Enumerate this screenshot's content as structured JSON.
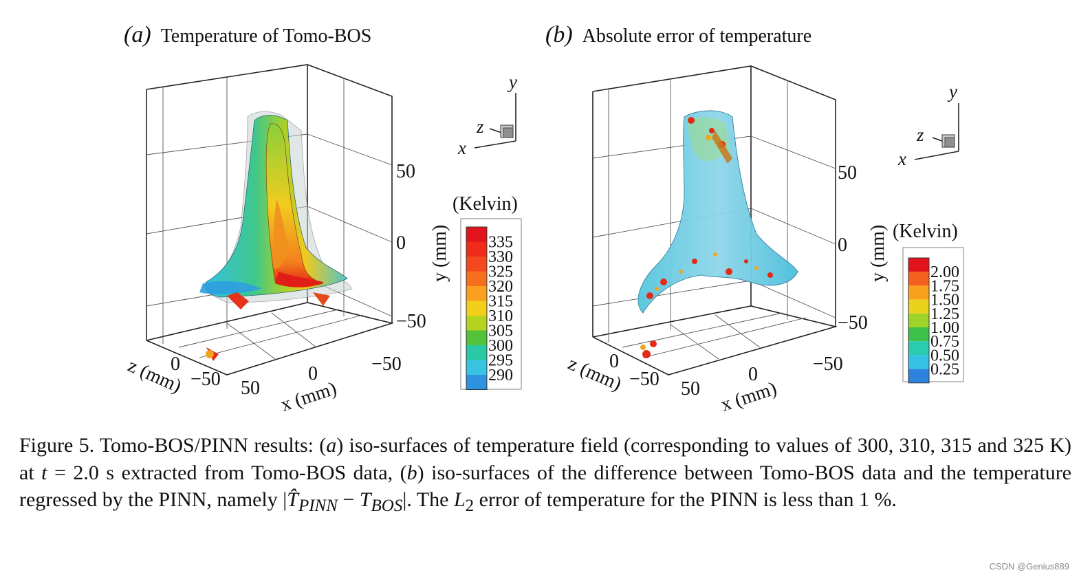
{
  "panel_a": {
    "label": "(a)",
    "title": "Temperature of Tomo-BOS",
    "y_ticks": [
      "50",
      "0",
      "−50"
    ],
    "x_ticks": [
      "−50",
      "0",
      "50"
    ],
    "z_ticks": [
      "0",
      "−50"
    ],
    "x_label": "x (mm)",
    "y_label": "y (mm)",
    "z_label": "z (mm)",
    "triad": {
      "x": "x",
      "y": "y",
      "z": "z"
    },
    "colorbar": {
      "title": "(Kelvin)",
      "labels": [
        "335",
        "330",
        "325",
        "320",
        "315",
        "310",
        "305",
        "300",
        "295",
        "290"
      ],
      "colors": [
        "#e0141a",
        "#ef2b1a",
        "#f4481f",
        "#f56f1c",
        "#f9a01f",
        "#f3cf1c",
        "#b4d31e",
        "#52c23a",
        "#29c8a6",
        "#37c4e3",
        "#2d92df"
      ]
    }
  },
  "panel_b": {
    "label": "(b)",
    "title": "Absolute error of temperature",
    "y_ticks": [
      "50",
      "0",
      "−50"
    ],
    "x_ticks": [
      "−50",
      "0",
      "50"
    ],
    "z_ticks": [
      "0",
      "−50"
    ],
    "x_label": "x (mm)",
    "y_label": "y (mm)",
    "z_label": "z (mm)",
    "triad": {
      "x": "x",
      "y": "y",
      "z": "z"
    },
    "colorbar": {
      "title": "(Kelvin)",
      "labels": [
        "2.00",
        "1.75",
        "1.50",
        "1.25",
        "1.00",
        "0.75",
        "0.50",
        "0.25"
      ],
      "colors": [
        "#e0141a",
        "#f4601e",
        "#f9a01f",
        "#e9d31c",
        "#9ed428",
        "#3cc24a",
        "#2bcbb0",
        "#36c2e4",
        "#2d82df"
      ]
    }
  },
  "caption": {
    "p1": "Figure 5. Tomo-BOS/PINN results: (",
    "a": "a",
    "p2": ") iso-surfaces of temperature field (corresponding to values of 300, 310, 315 and 325 K) at ",
    "t": "t",
    "p3": " = 2.0 s extracted from Tomo-BOS data, (",
    "b": "b",
    "p4": ") iso-surfaces of the difference between Tomo-BOS data and the temperature regressed by the PINN, namely |",
    "that": "T̂",
    "sub1": "PINN",
    "minus": " − ",
    "tb": "T",
    "sub2": "BOS",
    "p5": "|. The ",
    "l": "L",
    "two": "2",
    "p6": " error of temperature for the PINN is less than 1 %."
  },
  "watermark": "CSDN @Genius889"
}
